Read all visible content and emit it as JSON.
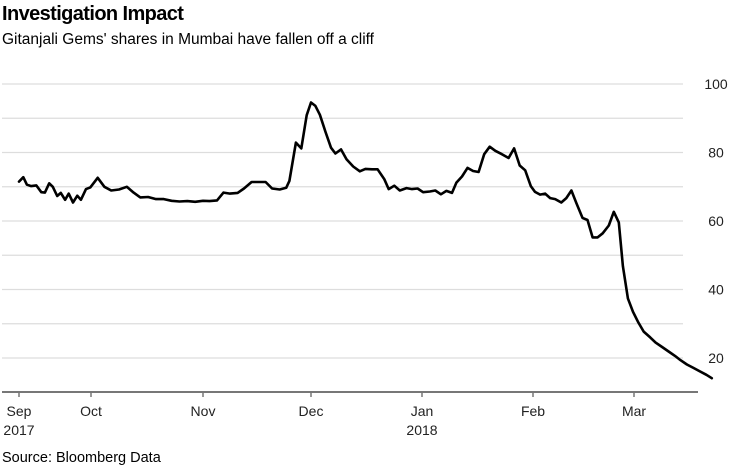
{
  "title": "Investigation Impact",
  "subtitle": "Gitanjali Gems' shares in Mumbai have fallen off a cliff",
  "source": "Source: Bloomberg Data",
  "chart_data": {
    "type": "line",
    "title": "Investigation Impact",
    "subtitle": "Gitanjali Gems' shares in Mumbai have fallen off a cliff",
    "xlabel": "",
    "ylabel": "",
    "ylim": [
      10,
      100
    ],
    "yticks": [
      20,
      40,
      60,
      80,
      100
    ],
    "grid": true,
    "y_axis_position": "right",
    "xticks": [
      {
        "label": "Sep",
        "sub": "2017",
        "t": 0
      },
      {
        "label": "Oct",
        "sub": "",
        "t": 1
      },
      {
        "label": "Nov",
        "sub": "",
        "t": 2
      },
      {
        "label": "Dec",
        "sub": "",
        "t": 3
      },
      {
        "label": "Jan",
        "sub": "2018",
        "t": 4
      },
      {
        "label": "Feb",
        "sub": "",
        "t": 5
      },
      {
        "label": "Mar",
        "sub": "",
        "t": 6
      }
    ],
    "series": [
      {
        "name": "Gitanjali Gems share price",
        "t_unit": "months since Sep 1 2017",
        "points": [
          [
            0.0,
            71.5
          ],
          [
            0.06,
            72.8
          ],
          [
            0.11,
            70.6
          ],
          [
            0.17,
            70.2
          ],
          [
            0.24,
            70.4
          ],
          [
            0.31,
            68.4
          ],
          [
            0.36,
            68.3
          ],
          [
            0.42,
            71.0
          ],
          [
            0.47,
            70.0
          ],
          [
            0.53,
            67.3
          ],
          [
            0.58,
            68.2
          ],
          [
            0.64,
            66.2
          ],
          [
            0.69,
            68.0
          ],
          [
            0.75,
            65.4
          ],
          [
            0.81,
            67.4
          ],
          [
            0.86,
            66.2
          ],
          [
            0.93,
            69.3
          ],
          [
            0.99,
            69.8
          ],
          [
            1.06,
            72.6
          ],
          [
            1.12,
            70.0
          ],
          [
            1.18,
            68.9
          ],
          [
            1.25,
            69.2
          ],
          [
            1.32,
            70.0
          ],
          [
            1.38,
            68.3
          ],
          [
            1.44,
            66.9
          ],
          [
            1.51,
            67.0
          ],
          [
            1.58,
            66.4
          ],
          [
            1.65,
            66.4
          ],
          [
            1.72,
            65.9
          ],
          [
            1.79,
            65.7
          ],
          [
            1.86,
            65.8
          ],
          [
            1.93,
            65.6
          ],
          [
            2.0,
            65.9
          ],
          [
            2.06,
            65.8
          ],
          [
            2.13,
            66.0
          ],
          [
            2.19,
            68.3
          ],
          [
            2.25,
            68.0
          ],
          [
            2.32,
            68.2
          ],
          [
            2.38,
            69.5
          ],
          [
            2.45,
            71.4
          ],
          [
            2.52,
            71.4
          ],
          [
            2.58,
            71.4
          ],
          [
            2.64,
            69.5
          ],
          [
            2.71,
            69.2
          ],
          [
            2.77,
            69.7
          ],
          [
            2.8,
            71.7
          ],
          [
            2.86,
            82.9
          ],
          [
            2.91,
            81.2
          ],
          [
            2.96,
            90.9
          ],
          [
            3.0,
            94.6
          ],
          [
            3.04,
            93.6
          ],
          [
            3.08,
            91.0
          ],
          [
            3.13,
            86.1
          ],
          [
            3.18,
            81.4
          ],
          [
            3.22,
            79.7
          ],
          [
            3.27,
            80.9
          ],
          [
            3.32,
            78.0
          ],
          [
            3.38,
            75.9
          ],
          [
            3.44,
            74.5
          ],
          [
            3.49,
            75.2
          ],
          [
            3.55,
            75.1
          ],
          [
            3.6,
            75.1
          ],
          [
            3.66,
            72.2
          ],
          [
            3.7,
            69.3
          ],
          [
            3.75,
            70.3
          ],
          [
            3.8,
            68.9
          ],
          [
            3.86,
            69.6
          ],
          [
            3.91,
            69.3
          ],
          [
            3.96,
            69.5
          ],
          [
            4.01,
            68.4
          ],
          [
            4.07,
            68.6
          ],
          [
            4.12,
            68.9
          ],
          [
            4.17,
            67.8
          ],
          [
            4.22,
            68.8
          ],
          [
            4.27,
            68.2
          ],
          [
            4.31,
            71.2
          ],
          [
            4.36,
            73.0
          ],
          [
            4.41,
            75.5
          ],
          [
            4.46,
            74.6
          ],
          [
            4.51,
            74.3
          ],
          [
            4.56,
            79.5
          ],
          [
            4.61,
            81.7
          ],
          [
            4.66,
            80.5
          ],
          [
            4.72,
            79.5
          ],
          [
            4.78,
            78.4
          ],
          [
            4.83,
            81.2
          ],
          [
            4.88,
            76.2
          ],
          [
            4.93,
            74.8
          ],
          [
            4.98,
            70.2
          ],
          [
            5.02,
            68.5
          ],
          [
            5.07,
            67.7
          ],
          [
            5.12,
            68.0
          ],
          [
            5.17,
            66.7
          ],
          [
            5.22,
            66.4
          ],
          [
            5.28,
            65.4
          ],
          [
            5.33,
            66.7
          ],
          [
            5.38,
            68.9
          ],
          [
            5.43,
            65.2
          ],
          [
            5.49,
            60.9
          ],
          [
            5.54,
            60.3
          ],
          [
            5.59,
            55.2
          ],
          [
            5.64,
            55.2
          ],
          [
            5.69,
            56.4
          ],
          [
            5.75,
            58.7
          ],
          [
            5.8,
            62.7
          ],
          [
            5.85,
            59.6
          ],
          [
            5.89,
            46.8
          ],
          [
            5.94,
            37.4
          ],
          [
            5.99,
            33.5
          ],
          [
            6.04,
            30.4
          ],
          [
            6.09,
            27.7
          ],
          [
            6.15,
            26.0
          ],
          [
            6.2,
            24.5
          ],
          [
            6.26,
            23.2
          ],
          [
            6.32,
            21.9
          ],
          [
            6.38,
            20.6
          ],
          [
            6.43,
            19.4
          ],
          [
            6.49,
            18.1
          ],
          [
            6.55,
            17.1
          ],
          [
            6.61,
            16.1
          ],
          [
            6.67,
            15.1
          ],
          [
            6.72,
            14.1
          ]
        ]
      }
    ],
    "colors": {
      "line": "#000000",
      "grid": "#dddddd",
      "axis": "#777777"
    }
  }
}
